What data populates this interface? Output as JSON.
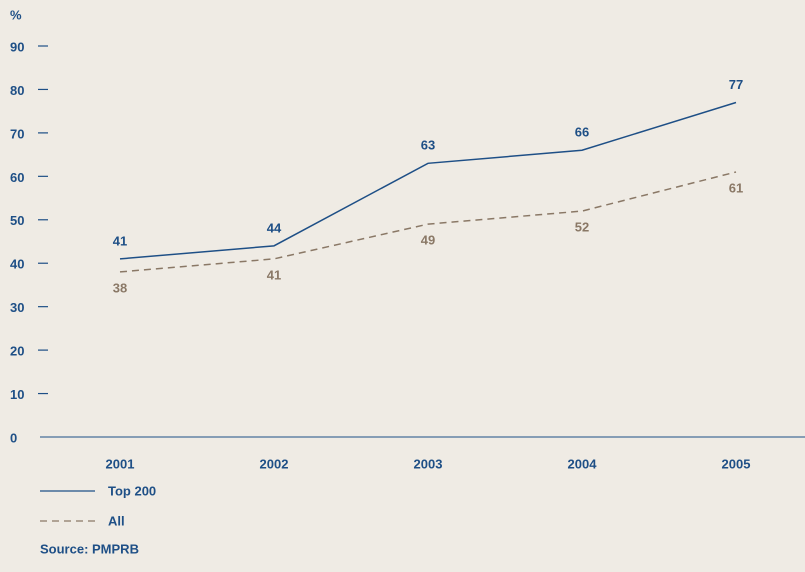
{
  "chart_data": {
    "type": "line",
    "ylabel": "%",
    "categories": [
      "2001",
      "2002",
      "2003",
      "2004",
      "2005"
    ],
    "series": [
      {
        "name": "Top 200",
        "color": "#1e4f86",
        "dashed": false,
        "values": [
          41,
          44,
          63,
          66,
          77
        ]
      },
      {
        "name": "All",
        "color": "#8a7866",
        "dashed": true,
        "values": [
          38,
          41,
          49,
          52,
          61
        ]
      }
    ],
    "ylim": [
      0,
      90
    ],
    "yticks": [
      0,
      10,
      20,
      30,
      40,
      50,
      60,
      70,
      80,
      90
    ],
    "source": "Source: PMPRB"
  }
}
